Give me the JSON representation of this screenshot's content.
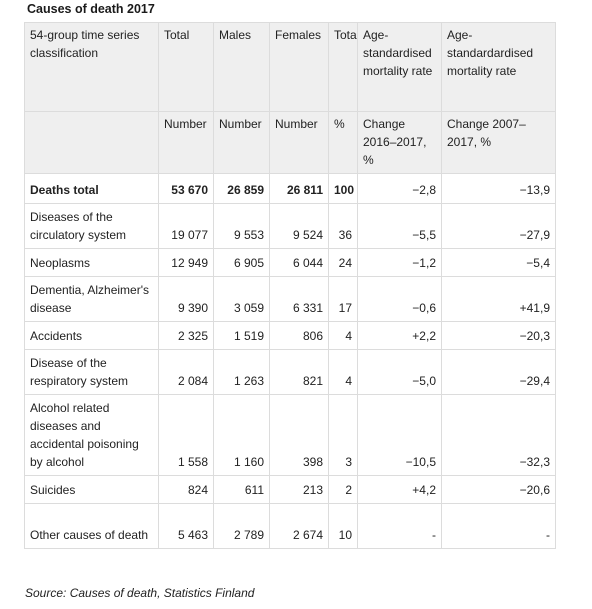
{
  "title": "Causes of death 2017",
  "header": {
    "classification": "54-group time series classification",
    "total": "Total",
    "males": "Males",
    "females": "Females",
    "total_pct": "Total",
    "age_std_1": "Age-standardised mortality rate",
    "age_std_2": "Age-standardardised mortality rate",
    "unit_number_1": "Number",
    "unit_number_2": "Number",
    "unit_number_3": "Number",
    "unit_pct": "%",
    "unit_change_1": "Change 2016–2017, %",
    "unit_change_2": "Change 2007–2017, %"
  },
  "rows": [
    {
      "cause": "Deaths total",
      "total": "53 670",
      "males": "26 859",
      "females": "26 811",
      "pct": "100",
      "change_1y": "−2,8",
      "change_10y": "−13,9"
    },
    {
      "cause": "Diseases of the circulatory system",
      "total": "19 077",
      "males": "9 553",
      "females": "9 524",
      "pct": "36",
      "change_1y": "−5,5",
      "change_10y": "−27,9"
    },
    {
      "cause": "Neoplasms",
      "total": "12 949",
      "males": "6 905",
      "females": "6 044",
      "pct": "24",
      "change_1y": "−1,2",
      "change_10y": "−5,4"
    },
    {
      "cause": "Dementia, Alzheimer's disease",
      "total": "9 390",
      "males": "3 059",
      "females": "6 331",
      "pct": "17",
      "change_1y": "−0,6",
      "change_10y": "+41,9"
    },
    {
      "cause": "Accidents",
      "total": "2 325",
      "males": "1 519",
      "females": "806",
      "pct": "4",
      "change_1y": "+2,2",
      "change_10y": "−20,3"
    },
    {
      "cause": "Disease of the respiratory system",
      "total": "2 084",
      "males": "1 263",
      "females": "821",
      "pct": "4",
      "change_1y": "−5,0",
      "change_10y": "−29,4"
    },
    {
      "cause": "Alcohol related diseases and accidental poisoning by alcohol",
      "total": "1 558",
      "males": "1 160",
      "females": "398",
      "pct": "3",
      "change_1y": "−10,5",
      "change_10y": "−32,3"
    },
    {
      "cause": "Suicides",
      "total": "824",
      "males": "611",
      "females": "213",
      "pct": "2",
      "change_1y": "+4,2",
      "change_10y": "−20,6"
    },
    {
      "cause": "Other causes of death",
      "total": "5 463",
      "males": "2 789",
      "females": "2 674",
      "pct": "10",
      "change_1y": "-",
      "change_10y": "-"
    }
  ],
  "source": "Source: Causes of death, Statistics Finland"
}
